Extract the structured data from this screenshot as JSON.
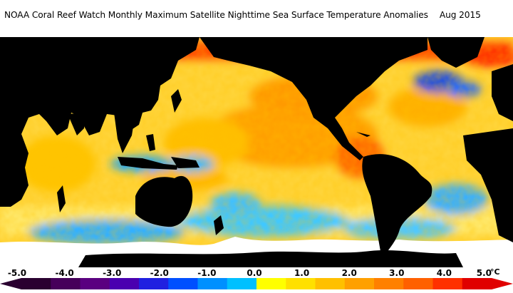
{
  "title": "NOAA Coral Reef Watch Monthly Maximum Satellite Nighttime Sea Surface Temperature Anomalies",
  "date": "Aug 2015",
  "colorbar": {
    "unit": "°C",
    "tick_labels": [
      "-5.0",
      "-4.0",
      "-3.0",
      "-2.0",
      "-1.0",
      "0.0",
      "1.0",
      "2.0",
      "3.0",
      "4.0",
      "5.0"
    ],
    "colors": [
      "#2a0030",
      "#46005a",
      "#5a0080",
      "#4a00b0",
      "#2020e0",
      "#0050ff",
      "#0090ff",
      "#00c0ff",
      "#ffff00",
      "#ffe000",
      "#ffc000",
      "#ffa000",
      "#ff8000",
      "#ff6000",
      "#ff3000",
      "#e00000"
    ]
  },
  "colors": {
    "land": "#000000",
    "ice": "#ffffff",
    "ocean_warm": "#ffa010",
    "ocean_neutral": "#ffe040",
    "ocean_cool": "#20b8ff",
    "ocean_cold": "#2050e0"
  }
}
